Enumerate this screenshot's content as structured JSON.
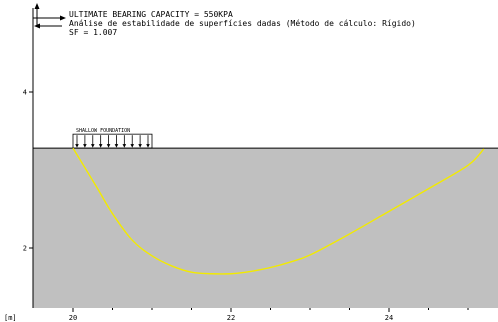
{
  "header": {
    "line1": "ULTIMATE BEARING CAPACITY = 550KPA",
    "line2": "Análise de estabilidade de superfícies dadas (Método de cálculo: Rígido)",
    "line3": "SF = 1.007"
  },
  "foundation_label": "SHALLOW FOUNDATION",
  "unit_label": "[m]",
  "colors": {
    "soil": "#c0c0c0",
    "slip_surface": "#f2ea00",
    "background": "#ffffff",
    "axis": "#000000"
  },
  "chart_data": {
    "type": "line",
    "title": "",
    "xlabel": "[m]",
    "ylabel": "",
    "xlim": [
      19.5,
      25.4
    ],
    "ylim": [
      1.45,
      5.1
    ],
    "x_ticks": [
      "20",
      "22",
      "24"
    ],
    "y_ticks": [
      "2",
      "4"
    ],
    "grid": false,
    "ground_level": 3.28,
    "foundation": {
      "x_start": 20.0,
      "x_end": 21.0,
      "load_arrows": 10
    },
    "series": [
      {
        "x": [
          20.0,
          20.3,
          20.5,
          20.75,
          21.0,
          21.25,
          21.5,
          21.75,
          22.0,
          22.25,
          22.5,
          22.75,
          23.0,
          23.5,
          24.0,
          24.5,
          25.0,
          25.2
        ],
        "y": [
          3.28,
          2.78,
          2.44,
          2.1,
          1.9,
          1.77,
          1.69,
          1.67,
          1.67,
          1.7,
          1.75,
          1.82,
          1.91,
          2.18,
          2.47,
          2.76,
          3.06,
          3.27
        ]
      }
    ]
  }
}
